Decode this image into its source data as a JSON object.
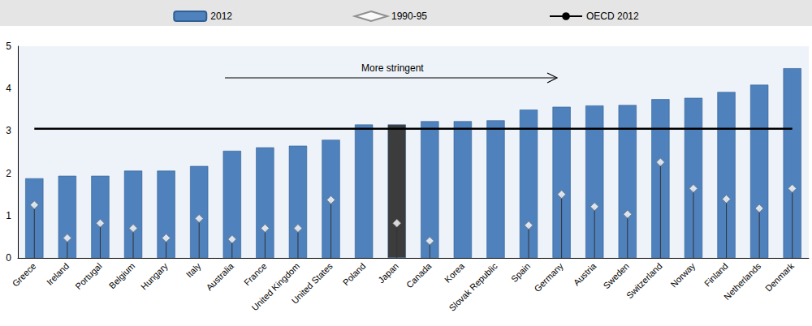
{
  "chart_data": {
    "type": "bar",
    "categories": [
      "Greece",
      "Ireland",
      "Portugal",
      "Belgium",
      "Hungary",
      "Italy",
      "Australia",
      "France",
      "United Kingdom",
      "United States",
      "Poland",
      "Japan",
      "Canada",
      "Korea",
      "Slovak Republic",
      "Spain",
      "Germany",
      "Austria",
      "Sweden",
      "Switzerland",
      "Norway",
      "Finland",
      "Netherlands",
      "Denmark"
    ],
    "series": [
      {
        "name": "2012",
        "type": "bar",
        "color": "#4f81bd",
        "colors": [
          "#4f81bd",
          "#4f81bd",
          "#4f81bd",
          "#4f81bd",
          "#4f81bd",
          "#4f81bd",
          "#4f81bd",
          "#4f81bd",
          "#4f81bd",
          "#4f81bd",
          "#4f81bd",
          "#3c3c3c",
          "#4f81bd",
          "#4f81bd",
          "#4f81bd",
          "#4f81bd",
          "#4f81bd",
          "#4f81bd",
          "#4f81bd",
          "#4f81bd",
          "#4f81bd",
          "#4f81bd",
          "#4f81bd",
          "#4f81bd"
        ],
        "values": [
          1.88,
          1.94,
          1.94,
          2.06,
          2.06,
          2.17,
          2.53,
          2.61,
          2.65,
          2.79,
          3.15,
          3.15,
          3.23,
          3.23,
          3.25,
          3.5,
          3.57,
          3.6,
          3.61,
          3.75,
          3.78,
          3.92,
          4.09,
          4.48
        ]
      },
      {
        "name": "1990-95",
        "type": "scatter",
        "marker": "diamond",
        "color": "#ffffff",
        "values": [
          1.25,
          0.47,
          0.82,
          0.7,
          0.47,
          0.93,
          0.44,
          0.7,
          0.7,
          1.37,
          null,
          0.82,
          0.4,
          null,
          null,
          0.77,
          1.5,
          1.21,
          1.03,
          2.26,
          1.64,
          1.39,
          1.17,
          1.64
        ]
      },
      {
        "name": "OECD 2012",
        "type": "line",
        "color": "#000000",
        "values": [
          3.05,
          3.05,
          3.05,
          3.05,
          3.05,
          3.05,
          3.05,
          3.05,
          3.05,
          3.05,
          3.05,
          3.05,
          3.05,
          3.05,
          3.05,
          3.05,
          3.05,
          3.05,
          3.05,
          3.05,
          3.05,
          3.05,
          3.05,
          3.05
        ]
      }
    ],
    "annotations": [
      {
        "text": "More stringent"
      }
    ],
    "ylim": [
      0,
      5
    ],
    "yticks": [
      0,
      1,
      2,
      3,
      4,
      5
    ],
    "grid": false,
    "legend": "top"
  }
}
